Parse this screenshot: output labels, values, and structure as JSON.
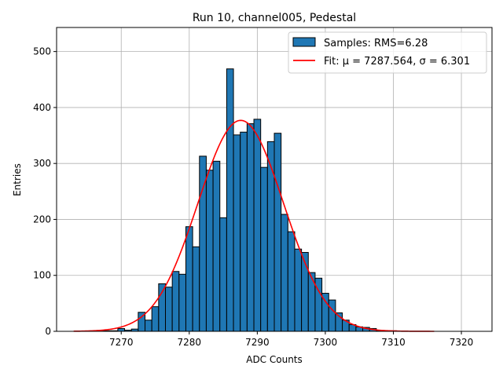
{
  "chart_data": {
    "type": "bar",
    "title": "Run 10, channel005, Pedestal",
    "xlabel": "ADC Counts",
    "ylabel": "Entries",
    "xlim": [
      7260.5,
      7324.5
    ],
    "ylim": [
      0,
      543
    ],
    "xticks": [
      7270,
      7280,
      7290,
      7300,
      7310,
      7320
    ],
    "yticks": [
      0,
      100,
      200,
      300,
      400,
      500
    ],
    "grid": true,
    "legend_position": "top-right",
    "bin_width": 1,
    "bins": {
      "x": [
        7266,
        7267,
        7268,
        7269,
        7270,
        7271,
        7272,
        7273,
        7274,
        7275,
        7276,
        7277,
        7278,
        7279,
        7280,
        7281,
        7282,
        7283,
        7284,
        7285,
        7286,
        7287,
        7288,
        7289,
        7290,
        7291,
        7292,
        7293,
        7294,
        7295,
        7296,
        7297,
        7298,
        7299,
        7300,
        7301,
        7302,
        7303,
        7304,
        7305,
        7306,
        7307,
        7308,
        7309,
        7310
      ],
      "values": [
        1,
        1,
        1,
        1,
        5,
        2,
        4,
        34,
        20,
        44,
        85,
        79,
        107,
        102,
        187,
        151,
        313,
        288,
        304,
        203,
        469,
        351,
        356,
        371,
        379,
        293,
        339,
        354,
        209,
        178,
        147,
        141,
        105,
        95,
        68,
        56,
        33,
        20,
        12,
        8,
        7,
        5,
        1,
        1,
        1
      ]
    },
    "series": [
      {
        "name": "Samples: RMS=6.28",
        "kind": "histogram",
        "color": "#1f77b4",
        "edge_color": "#000000"
      },
      {
        "name": "Fit: μ = 7287.564, σ = 6.301",
        "kind": "gaussian_fit",
        "color": "#ff0000",
        "mu": 7287.564,
        "sigma": 6.301,
        "amplitude": 377,
        "x_range": [
          7263,
          7316
        ]
      }
    ]
  }
}
